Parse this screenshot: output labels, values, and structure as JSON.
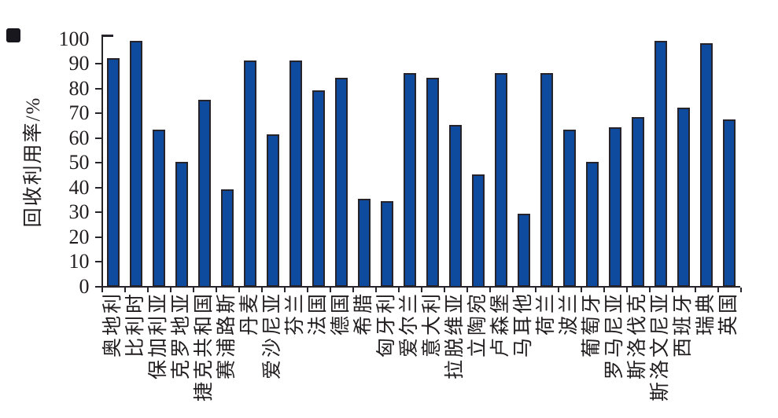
{
  "figure": {
    "bullet_marker_color": "#17171d",
    "background_color": "#ffffff"
  },
  "chart_data": {
    "type": "bar",
    "title": "",
    "xlabel": "",
    "ylabel": "回收利用率/%",
    "ylim": [
      0,
      100
    ],
    "yticks": [
      0,
      10,
      20,
      30,
      40,
      50,
      60,
      70,
      80,
      90,
      100
    ],
    "grid": false,
    "legend": "none",
    "bar_fill_color": "#0e4a9d",
    "bar_border_color": "#26232a",
    "axis_color": "#26232a",
    "categories": [
      "奥地利",
      "比利时",
      "保加利亚",
      "克罗地亚",
      "捷克共和国",
      "赛浦路斯",
      "丹麦",
      "爱沙尼亚",
      "芬兰",
      "法国",
      "德国",
      "希腊",
      "匈牙利",
      "爱尔兰",
      "意大利",
      "拉脱维亚",
      "立陶宛",
      "卢森堡",
      "马耳他",
      "荷兰",
      "波兰",
      "葡萄牙",
      "罗马尼亚",
      "斯洛伐克",
      "斯洛文尼亚",
      "西班牙",
      "瑞典",
      "英国"
    ],
    "values": [
      92,
      99,
      63,
      50,
      75,
      39,
      91,
      61,
      91,
      79,
      84,
      35,
      34,
      86,
      84,
      65,
      45,
      86,
      29,
      86,
      63,
      50,
      64,
      68,
      99,
      72,
      98,
      67
    ]
  }
}
